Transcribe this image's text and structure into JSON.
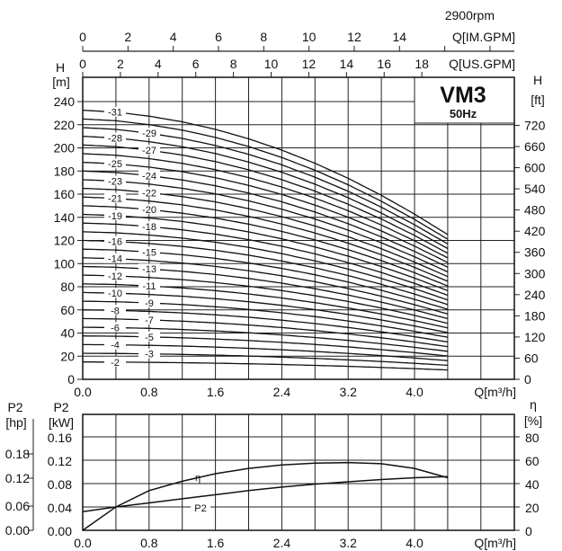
{
  "chart_data": [
    {
      "type": "line",
      "title": "VM3",
      "subtitle": "50Hz",
      "speed_label": "2900rpm",
      "xlabel": "Q[m³/h]",
      "ylabel_left": "H",
      "ylabel_left_unit": "[m]",
      "ylabel_right": "H",
      "ylabel_right_unit": "[ft]",
      "xlim": [
        0,
        5.2
      ],
      "ylim": [
        0,
        260
      ],
      "grid": true,
      "x_ticks": [
        "0.0",
        "0.8",
        "1.6",
        "2.4",
        "3.2",
        "4.0"
      ],
      "x_tick_values": [
        0,
        0.8,
        1.6,
        2.4,
        3.2,
        4.0
      ],
      "y_ticks_m": [
        0,
        20,
        40,
        60,
        80,
        100,
        120,
        140,
        160,
        180,
        200,
        220,
        240
      ],
      "y_ticks_ft": [
        0,
        60,
        120,
        180,
        240,
        300,
        360,
        420,
        480,
        540,
        600,
        660,
        720
      ],
      "top_axis_us_gpm": {
        "label": "Q[US.GPM]",
        "ticks": [
          0,
          2,
          4,
          6,
          8,
          10,
          12,
          14,
          16,
          18
        ],
        "per_m3h": 4.403
      },
      "top_axis_im_gpm": {
        "label": "Q[IM.GPM]",
        "ticks": [
          0,
          2,
          4,
          6,
          8,
          10,
          12,
          14
        ],
        "per_m3h": 3.666
      },
      "ft_per_m": 3.281,
      "stages": [
        2,
        3,
        4,
        5,
        6,
        7,
        8,
        9,
        10,
        11,
        12,
        13,
        14,
        15,
        16,
        17,
        18,
        19,
        20,
        21,
        22,
        23,
        24,
        25,
        26,
        27,
        28,
        29,
        30,
        31
      ],
      "stage_labels": [
        "-2",
        "-3",
        "-4",
        "-5",
        "-6",
        "-7",
        "-8",
        "-9",
        "-10",
        "-11",
        "-12",
        "-13",
        "-14",
        "-15",
        "-16",
        "-18",
        "-19",
        "-20",
        "-21",
        "-22",
        "-23",
        "-24",
        "-25",
        "-27",
        "-28",
        "-29",
        "-31"
      ],
      "labelled_stages": [
        2,
        3,
        4,
        5,
        6,
        7,
        8,
        9,
        10,
        11,
        12,
        13,
        14,
        15,
        16,
        18,
        19,
        20,
        21,
        22,
        23,
        24,
        25,
        27,
        28,
        29,
        31
      ],
      "head_per_stage_at_shutoff_m": 7.5,
      "head_curve_q": [
        0,
        0.4,
        0.8,
        1.2,
        1.6,
        2.0,
        2.4,
        2.8,
        3.2,
        3.6,
        4.0,
        4.4
      ],
      "head_curve_ratio": [
        1.0,
        0.993,
        0.978,
        0.957,
        0.929,
        0.894,
        0.852,
        0.803,
        0.747,
        0.684,
        0.614,
        0.538
      ]
    },
    {
      "type": "line",
      "xlabel": "Q[m³/h]",
      "ylabel_left": "P2",
      "ylabel_left_unit": "[kW]",
      "ylabel_hp": "P2",
      "ylabel_hp_unit": "[hp]",
      "ylabel_right": "η",
      "ylabel_right_unit": "[%]",
      "xlim": [
        0,
        5.2
      ],
      "ylim_kw": [
        0,
        0.2
      ],
      "ylim_eff": [
        0,
        100
      ],
      "x_ticks": [
        "0.0",
        "0.8",
        "1.6",
        "2.4",
        "3.2",
        "4.0"
      ],
      "y_ticks_kw": [
        "0.00",
        "0.04",
        "0.08",
        "0.12",
        "0.16"
      ],
      "y_ticks_hp": [
        "0.00",
        "0.06",
        "0.12",
        "0.18"
      ],
      "y_ticks_eff": [
        "0",
        "20",
        "40",
        "60",
        "80"
      ],
      "series": [
        {
          "name": "η",
          "unit": "%",
          "x": [
            0,
            0.4,
            0.8,
            1.2,
            1.6,
            2.0,
            2.4,
            2.8,
            3.2,
            3.6,
            4.0,
            4.4
          ],
          "y": [
            0,
            20,
            34,
            42,
            48.5,
            53,
            56,
            57.5,
            58,
            57,
            53,
            45
          ]
        },
        {
          "name": "P2",
          "unit": "kW",
          "x": [
            0,
            0.4,
            0.8,
            1.2,
            1.6,
            2.0,
            2.4,
            2.8,
            3.2,
            3.6,
            4.0,
            4.4
          ],
          "y": [
            0.032,
            0.04,
            0.047,
            0.054,
            0.061,
            0.068,
            0.074,
            0.079,
            0.083,
            0.087,
            0.09,
            0.092
          ]
        }
      ],
      "series_labels": [
        "η",
        "P2"
      ]
    }
  ]
}
